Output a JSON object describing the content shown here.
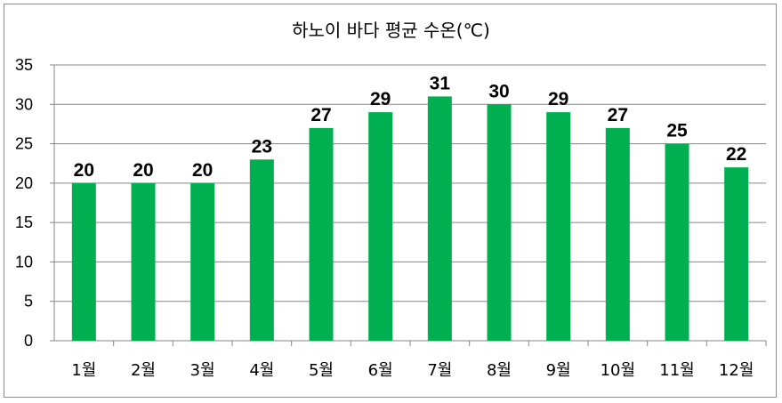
{
  "chart_data": {
    "type": "bar",
    "title": "하노이 바다  평균 수온(℃)",
    "categories": [
      "1월",
      "2월",
      "3월",
      "4월",
      "5월",
      "6월",
      "7월",
      "8월",
      "9월",
      "10월",
      "11월",
      "12월"
    ],
    "values": [
      20,
      20,
      20,
      23,
      27,
      29,
      31,
      30,
      29,
      27,
      25,
      22
    ],
    "ylim": [
      0,
      35
    ],
    "yticks": [
      0,
      5,
      10,
      15,
      20,
      25,
      30,
      35
    ],
    "grid": true,
    "legend": "none",
    "colors": {
      "bar": "#00B050",
      "grid": "#868686",
      "axis": "#868686"
    }
  }
}
